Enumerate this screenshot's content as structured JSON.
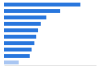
{
  "chart_data": {
    "type": "bar",
    "orientation": "horizontal",
    "categories": [
      null,
      null,
      null,
      null,
      null,
      null,
      null,
      null,
      null,
      null
    ],
    "values": [
      83,
      61,
      46,
      40,
      37,
      35,
      33,
      30,
      28,
      16
    ],
    "colors": [
      "#2876dd",
      "#2876dd",
      "#2876dd",
      "#2876dd",
      "#2876dd",
      "#2876dd",
      "#2876dd",
      "#2876dd",
      "#2876dd",
      "#a9c6f2"
    ],
    "xlim": [
      0,
      100
    ],
    "tick_labels": false,
    "grid": false
  }
}
